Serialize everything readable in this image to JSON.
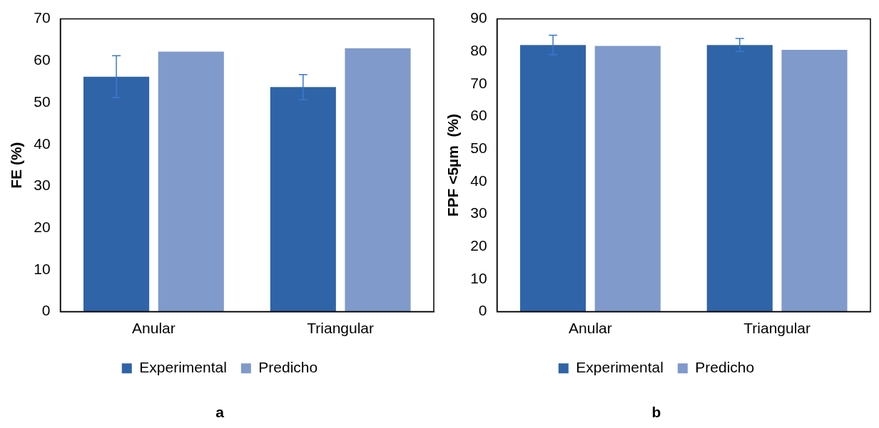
{
  "chart_data": [
    {
      "type": "bar",
      "title": "a",
      "ylabel": "FE (%)",
      "categories": [
        "Anular",
        "Triangular"
      ],
      "series": [
        {
          "name": "Experimental",
          "color": "#2f64a8",
          "values": [
            56.2,
            53.7
          ],
          "errors": [
            5,
            3
          ]
        },
        {
          "name": "Predicho",
          "color": "#7f9acb",
          "values": [
            62.2,
            63.0
          ]
        }
      ],
      "ylim": [
        0,
        70
      ],
      "yticks": [
        0,
        10,
        20,
        30,
        40,
        50,
        60,
        70
      ],
      "grid": false,
      "legend": "bottom"
    },
    {
      "type": "bar",
      "title": "b",
      "ylabel": "FPF <5µm  (%)",
      "categories": [
        "Anular",
        "Triangular"
      ],
      "series": [
        {
          "name": "Experimental",
          "color": "#2f64a8",
          "values": [
            82.0,
            82.0
          ],
          "errors": [
            3,
            2
          ]
        },
        {
          "name": "Predicho",
          "color": "#7f9acb",
          "values": [
            81.7,
            80.5
          ]
        }
      ],
      "ylim": [
        0,
        90
      ],
      "yticks": [
        0,
        10,
        20,
        30,
        40,
        50,
        60,
        70,
        80,
        90
      ],
      "grid": false,
      "legend": "bottom"
    }
  ]
}
